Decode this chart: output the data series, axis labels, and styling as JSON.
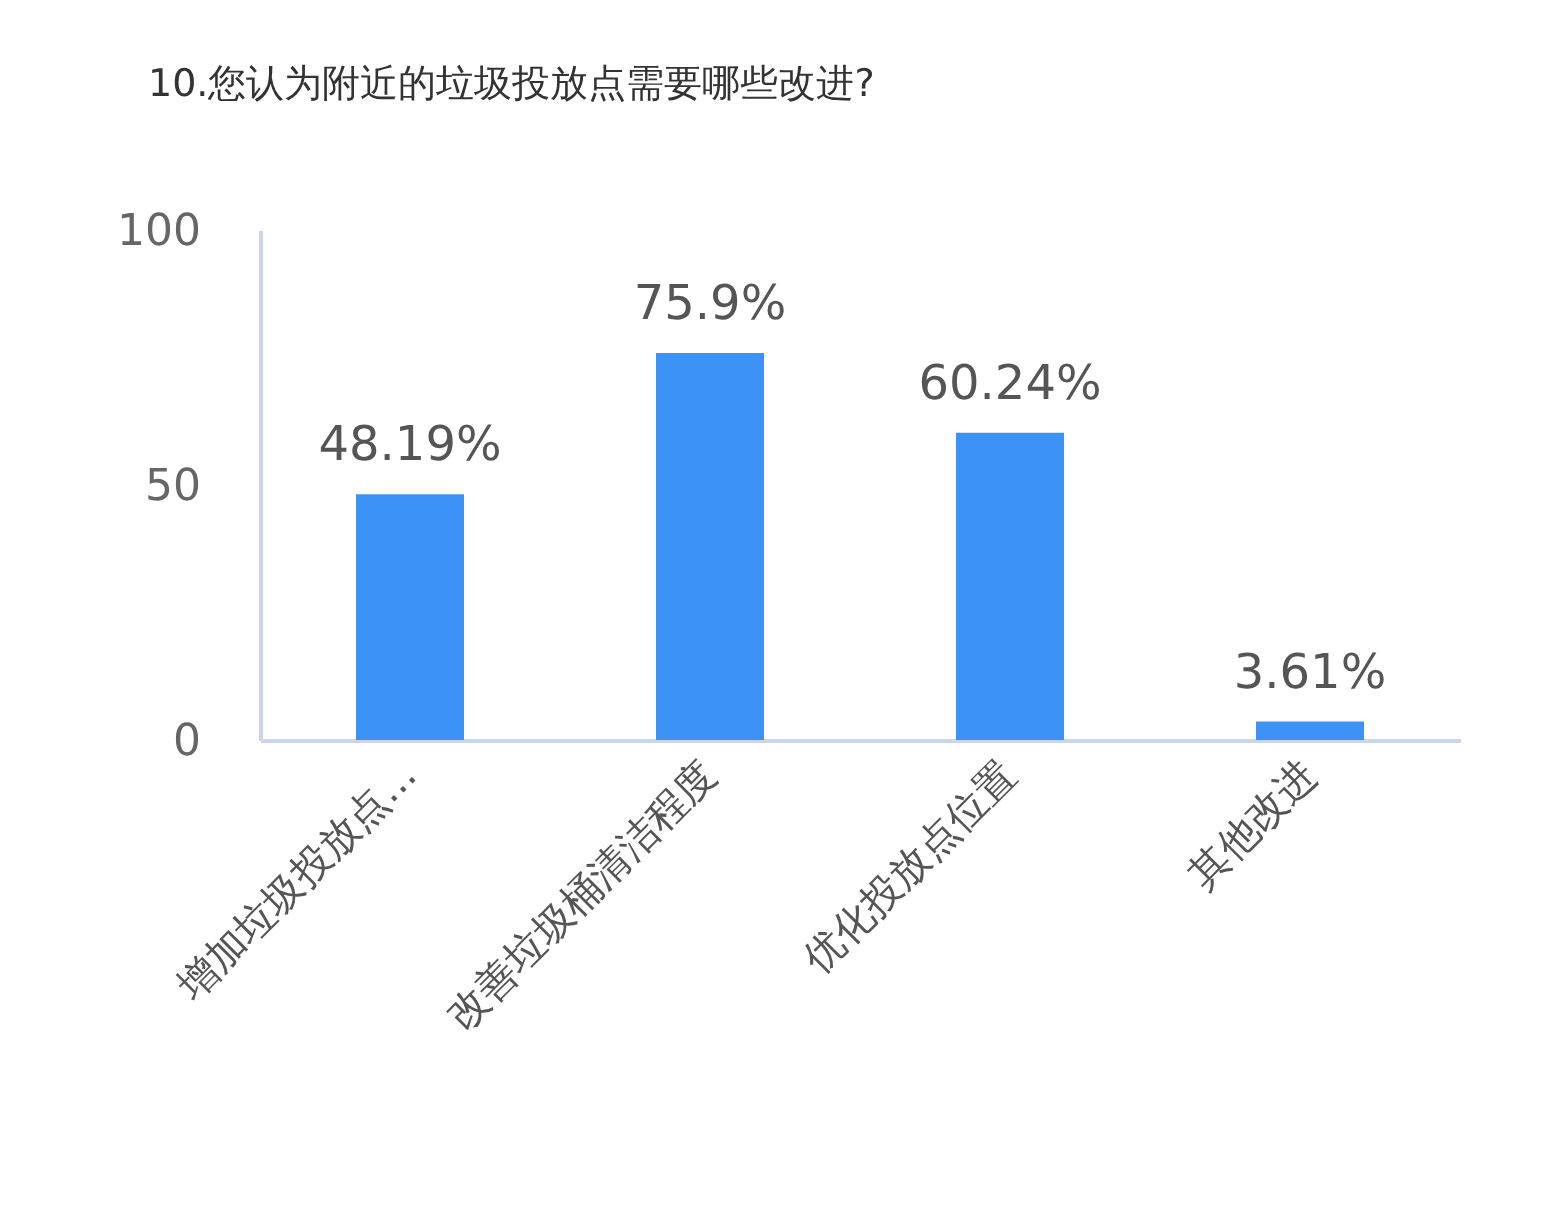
{
  "chart_data": {
    "type": "bar",
    "title": "10.您认为附近的垃圾投放点需要哪些改进?",
    "categories": [
      "增加垃圾投放点...",
      "改善垃圾桶清洁程度",
      "优化投放点位置",
      "其他改进"
    ],
    "values": [
      48.19,
      75.9,
      60.24,
      3.61
    ],
    "color": "#3d93f5",
    "value_labels": [
      "48.19%",
      "75.9%",
      "60.24%",
      "3.61%"
    ],
    "ylim": [
      0,
      100
    ],
    "yticks": [
      0,
      50,
      100
    ],
    "grid": false
  }
}
